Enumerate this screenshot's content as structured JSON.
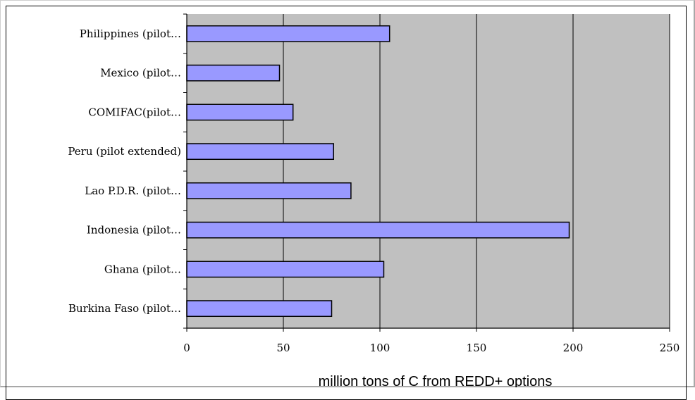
{
  "chart_data": {
    "type": "bar",
    "orientation": "horizontal",
    "categories": [
      "Philippines (pilot…",
      "Mexico (pilot…",
      "COMIFAC(pilot…",
      "Peru (pilot extended)",
      "Lao P.D.R. (pilot…",
      "Indonesia (pilot…",
      "Ghana (pilot…",
      "Burkina Faso (pilot…"
    ],
    "values": [
      105,
      48,
      55,
      76,
      85,
      198,
      102,
      75
    ],
    "xlabel": "million tons of C from REDD+ options",
    "xlim": [
      0,
      250
    ],
    "xticks": [
      0,
      50,
      100,
      150,
      200,
      250
    ],
    "grid": true,
    "colors": {
      "bar_fill": "#9999FF",
      "bar_stroke": "#000000",
      "plot_background": "#C0C0C0",
      "gridline": "#000000"
    }
  }
}
